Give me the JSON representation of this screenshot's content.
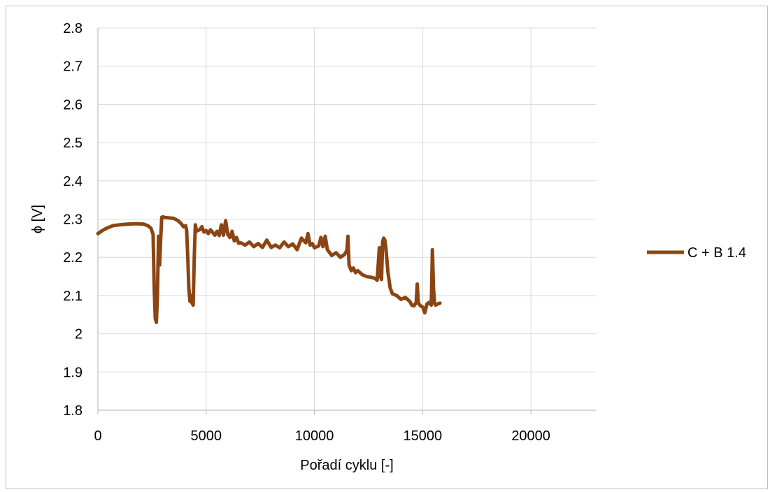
{
  "chart_data": {
    "type": "line",
    "title": "",
    "xlabel": "Pořadí cyklu [-]",
    "ylabel": "ϕ [V]",
    "xlim": [
      0,
      23000
    ],
    "ylim": [
      1.8,
      2.8
    ],
    "x_ticks": [
      0,
      5000,
      10000,
      15000,
      20000
    ],
    "x_tick_labels": [
      "0",
      "5000",
      "10000",
      "15000",
      "20000"
    ],
    "y_ticks": [
      1.8,
      1.9,
      2.0,
      2.1,
      2.2,
      2.3,
      2.4,
      2.5,
      2.6,
      2.7,
      2.8
    ],
    "y_tick_labels": [
      "1.8",
      "1.9",
      "2",
      "2.1",
      "2.2",
      "2.3",
      "2.4",
      "2.5",
      "2.6",
      "2.7",
      "2.8"
    ],
    "grid": true,
    "legend_position": "right",
    "colors": {
      "series": "#8B4513",
      "grid": "#d9d9d9",
      "axis": "#bfbfbf"
    },
    "series": [
      {
        "name": "C + B 1.4",
        "x": [
          0,
          200,
          400,
          700,
          1000,
          1400,
          1800,
          2100,
          2300,
          2450,
          2550,
          2600,
          2650,
          2700,
          2750,
          2800,
          2850,
          2900,
          2950,
          3000,
          3100,
          3300,
          3500,
          3700,
          3850,
          3950,
          4050,
          4100,
          4150,
          4200,
          4250,
          4300,
          4350,
          4400,
          4450,
          4500,
          4550,
          4600,
          4700,
          4800,
          4900,
          5000,
          5100,
          5200,
          5300,
          5400,
          5500,
          5600,
          5700,
          5800,
          5900,
          6000,
          6100,
          6200,
          6300,
          6400,
          6500,
          6600,
          6800,
          7000,
          7200,
          7400,
          7600,
          7800,
          8000,
          8200,
          8400,
          8600,
          8800,
          9000,
          9200,
          9400,
          9600,
          9700,
          9800,
          9900,
          10000,
          10200,
          10300,
          10400,
          10500,
          10600,
          10800,
          11000,
          11200,
          11400,
          11500,
          11550,
          11600,
          11700,
          11800,
          11900,
          12000,
          12200,
          12400,
          12600,
          12800,
          12900,
          13000,
          13050,
          13100,
          13150,
          13200,
          13250,
          13300,
          13400,
          13500,
          13600,
          13800,
          14000,
          14200,
          14400,
          14500,
          14600,
          14700,
          14750,
          14800,
          14900,
          15000,
          15100,
          15200,
          15300,
          15400,
          15450,
          15500,
          15550,
          15600,
          15700,
          15800
        ],
        "y": [
          2.262,
          2.27,
          2.276,
          2.283,
          2.285,
          2.287,
          2.288,
          2.287,
          2.283,
          2.276,
          2.26,
          2.12,
          2.04,
          2.03,
          2.1,
          2.255,
          2.18,
          2.25,
          2.305,
          2.306,
          2.304,
          2.303,
          2.302,
          2.296,
          2.288,
          2.28,
          2.283,
          2.27,
          2.2,
          2.12,
          2.085,
          2.1,
          2.08,
          2.075,
          2.2,
          2.285,
          2.268,
          2.27,
          2.272,
          2.28,
          2.266,
          2.27,
          2.262,
          2.272,
          2.265,
          2.258,
          2.268,
          2.257,
          2.285,
          2.258,
          2.296,
          2.26,
          2.252,
          2.268,
          2.243,
          2.252,
          2.237,
          2.238,
          2.232,
          2.24,
          2.228,
          2.236,
          2.226,
          2.245,
          2.226,
          2.232,
          2.225,
          2.24,
          2.228,
          2.235,
          2.22,
          2.25,
          2.238,
          2.262,
          2.232,
          2.236,
          2.225,
          2.23,
          2.252,
          2.228,
          2.255,
          2.22,
          2.205,
          2.212,
          2.2,
          2.208,
          2.218,
          2.255,
          2.18,
          2.165,
          2.172,
          2.16,
          2.165,
          2.155,
          2.15,
          2.148,
          2.145,
          2.14,
          2.225,
          2.15,
          2.142,
          2.24,
          2.25,
          2.245,
          2.225,
          2.16,
          2.12,
          2.105,
          2.1,
          2.09,
          2.095,
          2.085,
          2.075,
          2.073,
          2.082,
          2.13,
          2.08,
          2.073,
          2.07,
          2.055,
          2.078,
          2.082,
          2.075,
          2.22,
          2.12,
          2.08,
          2.075,
          2.078,
          2.08
        ]
      }
    ]
  }
}
